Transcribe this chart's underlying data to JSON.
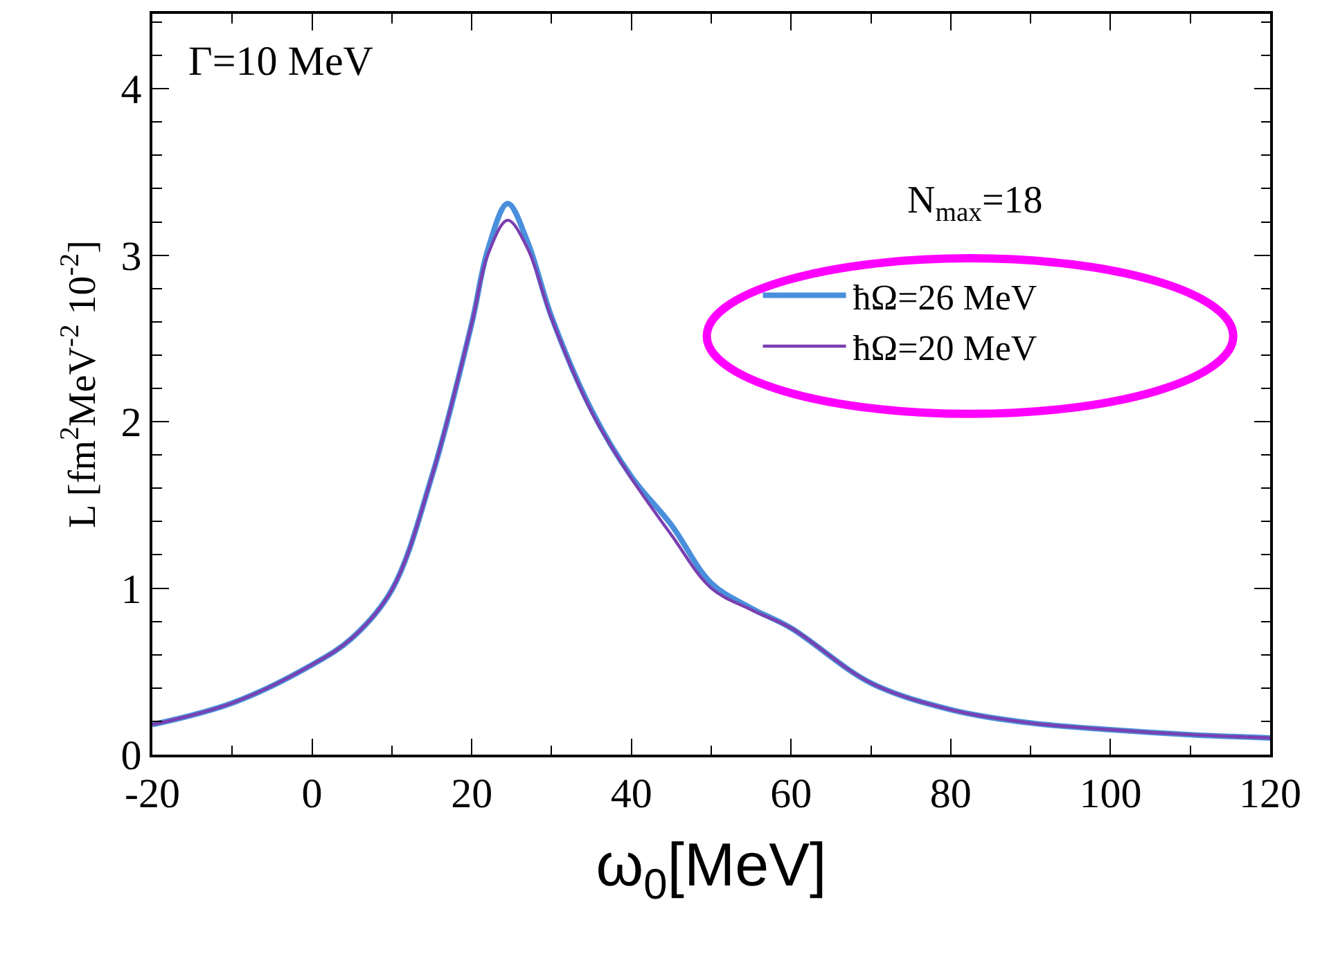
{
  "chart_data": {
    "type": "line",
    "xlabel": "ω$_{0}$[MeV]",
    "ylabel": "L [fm$^{2}$MeV$^{-2}$ 10$^{-2}$]",
    "legend_title": "N$_{max}$=18",
    "legend": "top right",
    "annotations": [
      "Γ=10 MeV"
    ],
    "x": [
      -20,
      -10,
      0,
      5,
      10,
      15,
      20,
      22,
      24.5,
      27,
      30,
      35,
      40,
      45,
      50,
      55,
      60,
      70,
      80,
      90,
      100,
      110,
      120
    ],
    "xlim": [
      -20,
      120
    ],
    "xticks": [
      -20,
      0,
      20,
      40,
      60,
      80,
      100,
      120
    ],
    "ylim": [
      0,
      4.45
    ],
    "yticks": [
      0,
      1,
      2,
      3,
      4
    ],
    "line_style": "solid",
    "series": [
      {
        "name": "ħΩ=26 MeV",
        "color": "#4a8fdb",
        "values": [
          0.18,
          0.31,
          0.54,
          0.7,
          0.99,
          1.67,
          2.59,
          3.03,
          3.31,
          3.08,
          2.63,
          2.07,
          1.67,
          1.38,
          1.03,
          0.88,
          0.76,
          0.43,
          0.27,
          0.19,
          0.15,
          0.12,
          0.1
        ]
      },
      {
        "name": "ħΩ=20 MeV",
        "color": "#7a3fb0",
        "values": [
          0.18,
          0.31,
          0.54,
          0.7,
          0.99,
          1.67,
          2.59,
          3.0,
          3.21,
          3.04,
          2.62,
          2.06,
          1.66,
          1.32,
          1.0,
          0.87,
          0.76,
          0.43,
          0.27,
          0.19,
          0.15,
          0.12,
          0.1
        ]
      }
    ]
  }
}
